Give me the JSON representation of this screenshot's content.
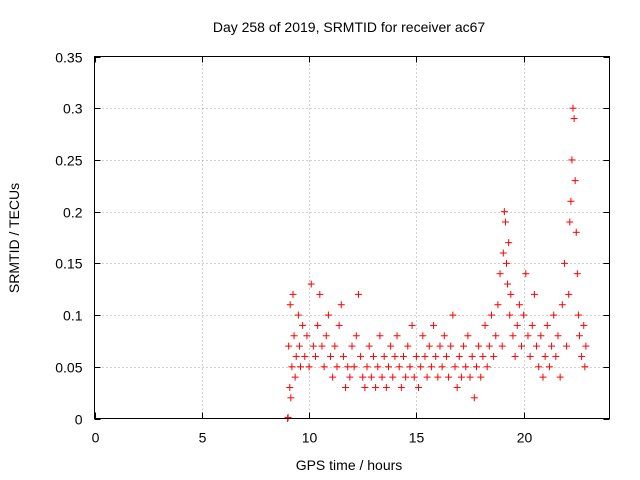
{
  "chart_data": {
    "type": "scatter",
    "title": "Day 258 of 2019, SRMTID for receiver ac67",
    "xlabel": "GPS time / hours",
    "ylabel": "SRMTID / TECUs",
    "xlim": [
      0,
      24
    ],
    "ylim": [
      0,
      0.35
    ],
    "xticks": [
      0,
      5,
      10,
      15,
      20
    ],
    "xtick_labels": [
      "0",
      "5",
      "10",
      "15",
      "20"
    ],
    "yticks": [
      0,
      0.05,
      0.1,
      0.15,
      0.2,
      0.25,
      0.3,
      0.35
    ],
    "ytick_labels": [
      "0",
      "0.05",
      "0.1",
      "0.15",
      "0.2",
      "0.25",
      "0.3",
      "0.35"
    ],
    "grid": true,
    "marker": "+",
    "color": "#ff0000",
    "series": [
      {
        "name": "SRMTID",
        "points": [
          [
            9.0,
            0.0
          ],
          [
            9.02,
            0.001
          ],
          [
            9.05,
            0.07
          ],
          [
            9.1,
            0.03
          ],
          [
            9.12,
            0.11
          ],
          [
            9.15,
            0.02
          ],
          [
            9.2,
            0.05
          ],
          [
            9.25,
            0.12
          ],
          [
            9.3,
            0.08
          ],
          [
            9.35,
            0.04
          ],
          [
            9.4,
            0.06
          ],
          [
            9.5,
            0.1
          ],
          [
            9.55,
            0.07
          ],
          [
            9.6,
            0.05
          ],
          [
            9.7,
            0.09
          ],
          [
            9.8,
            0.06
          ],
          [
            9.9,
            0.08
          ],
          [
            10.0,
            0.05
          ],
          [
            10.1,
            0.13
          ],
          [
            10.2,
            0.07
          ],
          [
            10.3,
            0.06
          ],
          [
            10.4,
            0.09
          ],
          [
            10.5,
            0.12
          ],
          [
            10.6,
            0.07
          ],
          [
            10.7,
            0.05
          ],
          [
            10.8,
            0.08
          ],
          [
            10.9,
            0.1
          ],
          [
            11.0,
            0.06
          ],
          [
            11.1,
            0.04
          ],
          [
            11.2,
            0.07
          ],
          [
            11.3,
            0.05
          ],
          [
            11.4,
            0.09
          ],
          [
            11.5,
            0.11
          ],
          [
            11.6,
            0.06
          ],
          [
            11.7,
            0.03
          ],
          [
            11.8,
            0.05
          ],
          [
            11.9,
            0.04
          ],
          [
            12.0,
            0.07
          ],
          [
            12.1,
            0.05
          ],
          [
            12.2,
            0.08
          ],
          [
            12.3,
            0.12
          ],
          [
            12.4,
            0.06
          ],
          [
            12.5,
            0.04
          ],
          [
            12.6,
            0.03
          ],
          [
            12.7,
            0.05
          ],
          [
            12.8,
            0.07
          ],
          [
            12.9,
            0.04
          ],
          [
            13.0,
            0.06
          ],
          [
            13.1,
            0.03
          ],
          [
            13.2,
            0.05
          ],
          [
            13.3,
            0.08
          ],
          [
            13.4,
            0.04
          ],
          [
            13.5,
            0.06
          ],
          [
            13.6,
            0.03
          ],
          [
            13.7,
            0.05
          ],
          [
            13.8,
            0.07
          ],
          [
            13.9,
            0.04
          ],
          [
            14.0,
            0.06
          ],
          [
            14.1,
            0.08
          ],
          [
            14.2,
            0.05
          ],
          [
            14.3,
            0.03
          ],
          [
            14.4,
            0.06
          ],
          [
            14.5,
            0.04
          ],
          [
            14.6,
            0.07
          ],
          [
            14.7,
            0.05
          ],
          [
            14.8,
            0.09
          ],
          [
            14.9,
            0.04
          ],
          [
            15.0,
            0.06
          ],
          [
            15.1,
            0.03
          ],
          [
            15.2,
            0.05
          ],
          [
            15.3,
            0.08
          ],
          [
            15.4,
            0.06
          ],
          [
            15.5,
            0.04
          ],
          [
            15.6,
            0.07
          ],
          [
            15.7,
            0.05
          ],
          [
            15.8,
            0.09
          ],
          [
            15.9,
            0.06
          ],
          [
            16.0,
            0.04
          ],
          [
            16.1,
            0.07
          ],
          [
            16.2,
            0.05
          ],
          [
            16.3,
            0.08
          ],
          [
            16.4,
            0.06
          ],
          [
            16.5,
            0.04
          ],
          [
            16.6,
            0.07
          ],
          [
            16.7,
            0.1
          ],
          [
            16.8,
            0.05
          ],
          [
            16.9,
            0.03
          ],
          [
            17.0,
            0.06
          ],
          [
            17.1,
            0.04
          ],
          [
            17.2,
            0.07
          ],
          [
            17.3,
            0.05
          ],
          [
            17.4,
            0.08
          ],
          [
            17.5,
            0.04
          ],
          [
            17.6,
            0.06
          ],
          [
            17.7,
            0.02
          ],
          [
            17.8,
            0.05
          ],
          [
            17.9,
            0.07
          ],
          [
            18.0,
            0.04
          ],
          [
            18.1,
            0.06
          ],
          [
            18.2,
            0.09
          ],
          [
            18.3,
            0.05
          ],
          [
            18.4,
            0.07
          ],
          [
            18.5,
            0.1
          ],
          [
            18.6,
            0.06
          ],
          [
            18.7,
            0.08
          ],
          [
            18.8,
            0.11
          ],
          [
            18.9,
            0.14
          ],
          [
            19.0,
            0.07
          ],
          [
            19.05,
            0.16
          ],
          [
            19.1,
            0.2
          ],
          [
            19.15,
            0.19
          ],
          [
            19.2,
            0.15
          ],
          [
            19.25,
            0.13
          ],
          [
            19.3,
            0.17
          ],
          [
            19.35,
            0.1
          ],
          [
            19.4,
            0.12
          ],
          [
            19.5,
            0.08
          ],
          [
            19.6,
            0.06
          ],
          [
            19.7,
            0.09
          ],
          [
            19.8,
            0.11
          ],
          [
            19.9,
            0.07
          ],
          [
            20.0,
            0.1
          ],
          [
            20.1,
            0.14
          ],
          [
            20.2,
            0.08
          ],
          [
            20.3,
            0.06
          ],
          [
            20.4,
            0.09
          ],
          [
            20.5,
            0.12
          ],
          [
            20.6,
            0.07
          ],
          [
            20.7,
            0.05
          ],
          [
            20.8,
            0.08
          ],
          [
            20.9,
            0.04
          ],
          [
            21.0,
            0.06
          ],
          [
            21.1,
            0.09
          ],
          [
            21.2,
            0.05
          ],
          [
            21.3,
            0.07
          ],
          [
            21.4,
            0.1
          ],
          [
            21.5,
            0.06
          ],
          [
            21.6,
            0.08
          ],
          [
            21.7,
            0.04
          ],
          [
            21.8,
            0.11
          ],
          [
            21.9,
            0.15
          ],
          [
            22.0,
            0.07
          ],
          [
            22.1,
            0.12
          ],
          [
            22.15,
            0.19
          ],
          [
            22.2,
            0.21
          ],
          [
            22.25,
            0.25
          ],
          [
            22.3,
            0.3
          ],
          [
            22.35,
            0.29
          ],
          [
            22.4,
            0.23
          ],
          [
            22.45,
            0.18
          ],
          [
            22.5,
            0.14
          ],
          [
            22.55,
            0.1
          ],
          [
            22.6,
            0.08
          ],
          [
            22.7,
            0.06
          ],
          [
            22.8,
            0.09
          ],
          [
            22.85,
            0.05
          ],
          [
            22.9,
            0.07
          ]
        ]
      }
    ]
  }
}
